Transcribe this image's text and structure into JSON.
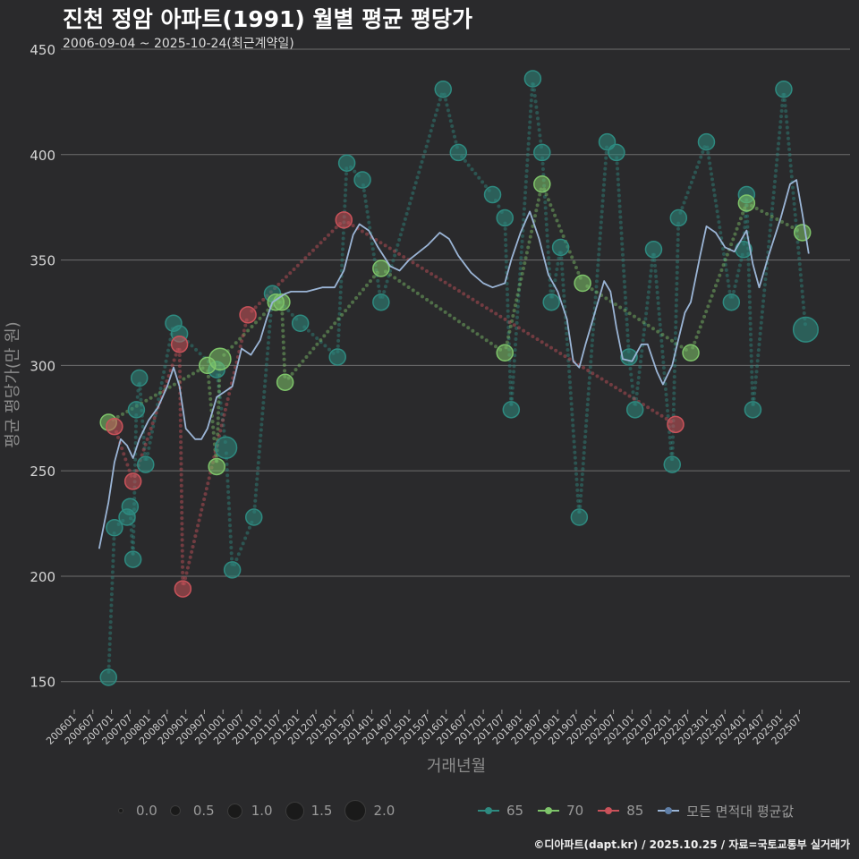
{
  "header": {
    "title": "진천 정암 아파트(1991) 월별 평균 평당가",
    "subtitle": "2006-09-04 ~ 2025-10-24(최근계약일)"
  },
  "caption": "©디아파트(dapt.kr) / 2025.10.25 / 자료=국토교통부 실거래가",
  "legend": {
    "size": [
      {
        "label": "0.0",
        "value": 0.0
      },
      {
        "label": "0.5",
        "value": 0.5
      },
      {
        "label": "1.0",
        "value": 1.0
      },
      {
        "label": "1.5",
        "value": 1.5
      },
      {
        "label": "2.0",
        "value": 2.0
      }
    ],
    "series": [
      {
        "label": "65",
        "color": "#2e8a80"
      },
      {
        "label": "70",
        "color": "#7ec46a"
      },
      {
        "label": "85",
        "color": "#c9525a"
      },
      {
        "label": "모든 면적대 평균값",
        "color": "#9bb5d6"
      }
    ]
  },
  "chart_data": {
    "type": "scatter",
    "title": "진천 정암 아파트(1991) 월별 평균 평당가",
    "xlabel": "거래년월",
    "ylabel": "평균 평당가(만 원)",
    "ylim": [
      138,
      450
    ],
    "yticks": [
      150,
      200,
      250,
      300,
      350,
      400,
      450
    ],
    "xlim": [
      2006.0,
      2025.9
    ],
    "xtick_labels": [
      "200601",
      "200607",
      "200701",
      "200707",
      "200801",
      "200807",
      "200901",
      "200907",
      "201001",
      "201007",
      "201101",
      "201107",
      "201201",
      "201207",
      "201301",
      "201307",
      "201401",
      "201407",
      "201501",
      "201507",
      "201601",
      "201607",
      "201701",
      "201707",
      "201801",
      "201807",
      "201901",
      "201907",
      "202001",
      "202007",
      "202101",
      "202107",
      "202201",
      "202207",
      "202301",
      "202307",
      "202401",
      "202407",
      "202501",
      "202507"
    ],
    "series": [
      {
        "name": "65",
        "color": "#2e8a80",
        "points": [
          [
            2006.92,
            152,
            1.0
          ],
          [
            2007.08,
            223,
            1.0
          ],
          [
            2007.42,
            228,
            1.0
          ],
          [
            2007.5,
            233,
            1.0
          ],
          [
            2007.58,
            208,
            1.0
          ],
          [
            2007.67,
            279,
            1.0
          ],
          [
            2007.75,
            294,
            1.0
          ],
          [
            2007.92,
            253,
            1.0
          ],
          [
            2008.67,
            320,
            1.0
          ],
          [
            2008.83,
            315,
            1.0
          ],
          [
            2009.83,
            298,
            1.0
          ],
          [
            2010.08,
            261,
            1.5
          ],
          [
            2010.25,
            203,
            1.0
          ],
          [
            2010.83,
            228,
            1.0
          ],
          [
            2011.33,
            334,
            1.0
          ],
          [
            2012.08,
            320,
            1.0
          ],
          [
            2013.08,
            304,
            1.0
          ],
          [
            2013.33,
            396,
            1.0
          ],
          [
            2013.75,
            388,
            1.0
          ],
          [
            2014.25,
            330,
            1.0
          ],
          [
            2015.92,
            431,
            1.0
          ],
          [
            2016.33,
            401,
            1.0
          ],
          [
            2017.25,
            381,
            1.0
          ],
          [
            2017.58,
            370,
            1.0
          ],
          [
            2017.75,
            279,
            1.0
          ],
          [
            2018.33,
            436,
            1.0
          ],
          [
            2018.58,
            401,
            1.0
          ],
          [
            2018.83,
            330,
            1.0
          ],
          [
            2019.08,
            356,
            1.0
          ],
          [
            2019.58,
            228,
            1.0
          ],
          [
            2020.33,
            406,
            1.0
          ],
          [
            2020.58,
            401,
            1.0
          ],
          [
            2020.92,
            304,
            1.0
          ],
          [
            2021.08,
            279,
            1.0
          ],
          [
            2021.58,
            355,
            1.0
          ],
          [
            2022.08,
            253,
            1.0
          ],
          [
            2022.25,
            370,
            1.0
          ],
          [
            2023.0,
            406,
            1.0
          ],
          [
            2023.67,
            330,
            1.0
          ],
          [
            2024.08,
            381,
            1.0
          ],
          [
            2024.25,
            279,
            1.0
          ],
          [
            2024.0,
            355,
            1.0
          ],
          [
            2025.08,
            431,
            1.0
          ],
          [
            2025.67,
            317,
            1.8
          ]
        ]
      },
      {
        "name": "70",
        "color": "#7ec46a",
        "points": [
          [
            2006.92,
            273,
            1.0
          ],
          [
            2009.58,
            300,
            1.0
          ],
          [
            2009.83,
            252,
            1.0
          ],
          [
            2009.92,
            303,
            1.5
          ],
          [
            2011.42,
            330,
            1.0
          ],
          [
            2011.58,
            330,
            1.0
          ],
          [
            2011.67,
            292,
            1.0
          ],
          [
            2014.25,
            346,
            1.0
          ],
          [
            2017.58,
            306,
            1.0
          ],
          [
            2018.58,
            386,
            1.0
          ],
          [
            2019.67,
            339,
            1.0
          ],
          [
            2022.58,
            306,
            1.0
          ],
          [
            2024.08,
            377,
            1.0
          ],
          [
            2025.58,
            363,
            1.0
          ]
        ]
      },
      {
        "name": "85",
        "color": "#c9525a",
        "points": [
          [
            2007.08,
            271,
            1.0
          ],
          [
            2007.58,
            245,
            1.0
          ],
          [
            2008.83,
            310,
            1.0
          ],
          [
            2008.92,
            194,
            1.0
          ],
          [
            2010.67,
            324,
            1.0
          ],
          [
            2013.25,
            369,
            1.0
          ],
          [
            2022.17,
            272,
            1.0
          ]
        ]
      },
      {
        "name": "모든 면적대 평균값",
        "color": "#9bb5d6",
        "points": [
          [
            2006.67,
            213
          ],
          [
            2006.92,
            235
          ],
          [
            2007.08,
            254
          ],
          [
            2007.25,
            265
          ],
          [
            2007.42,
            262
          ],
          [
            2007.58,
            256
          ],
          [
            2007.75,
            265
          ],
          [
            2008.0,
            274
          ],
          [
            2008.25,
            280
          ],
          [
            2008.5,
            290
          ],
          [
            2008.67,
            299
          ],
          [
            2008.83,
            290
          ],
          [
            2009.0,
            270
          ],
          [
            2009.25,
            265
          ],
          [
            2009.42,
            265
          ],
          [
            2009.58,
            270
          ],
          [
            2009.83,
            285
          ],
          [
            2010.0,
            287
          ],
          [
            2010.25,
            290
          ],
          [
            2010.5,
            308
          ],
          [
            2010.75,
            305
          ],
          [
            2011.0,
            312
          ],
          [
            2011.17,
            322
          ],
          [
            2011.33,
            330
          ],
          [
            2011.5,
            332
          ],
          [
            2011.67,
            334
          ],
          [
            2011.83,
            335
          ],
          [
            2012.25,
            335
          ],
          [
            2012.67,
            337
          ],
          [
            2013.0,
            337
          ],
          [
            2013.25,
            345
          ],
          [
            2013.5,
            362
          ],
          [
            2013.67,
            367
          ],
          [
            2013.92,
            364
          ],
          [
            2014.17,
            356
          ],
          [
            2014.5,
            347
          ],
          [
            2014.75,
            345
          ],
          [
            2015.0,
            350
          ],
          [
            2015.5,
            357
          ],
          [
            2015.83,
            363
          ],
          [
            2016.08,
            360
          ],
          [
            2016.33,
            352
          ],
          [
            2016.67,
            344
          ],
          [
            2017.0,
            339
          ],
          [
            2017.25,
            337
          ],
          [
            2017.42,
            338
          ],
          [
            2017.58,
            339
          ],
          [
            2017.75,
            350
          ],
          [
            2018.0,
            363
          ],
          [
            2018.25,
            373
          ],
          [
            2018.5,
            360
          ],
          [
            2018.75,
            343
          ],
          [
            2019.0,
            335
          ],
          [
            2019.25,
            322
          ],
          [
            2019.42,
            302
          ],
          [
            2019.58,
            299
          ],
          [
            2019.75,
            310
          ],
          [
            2020.0,
            325
          ],
          [
            2020.25,
            340
          ],
          [
            2020.42,
            335
          ],
          [
            2020.58,
            318
          ],
          [
            2020.75,
            303
          ],
          [
            2021.0,
            302
          ],
          [
            2021.25,
            310
          ],
          [
            2021.42,
            310
          ],
          [
            2021.67,
            297
          ],
          [
            2021.83,
            291
          ],
          [
            2022.08,
            300
          ],
          [
            2022.42,
            325
          ],
          [
            2022.58,
            330
          ],
          [
            2022.83,
            352
          ],
          [
            2023.0,
            366
          ],
          [
            2023.25,
            363
          ],
          [
            2023.5,
            356
          ],
          [
            2023.75,
            354
          ],
          [
            2024.08,
            364
          ],
          [
            2024.25,
            348
          ],
          [
            2024.42,
            337
          ],
          [
            2024.67,
            352
          ],
          [
            2025.0,
            370
          ],
          [
            2025.25,
            386
          ],
          [
            2025.42,
            388
          ],
          [
            2025.58,
            372
          ],
          [
            2025.75,
            353
          ]
        ]
      }
    ]
  }
}
